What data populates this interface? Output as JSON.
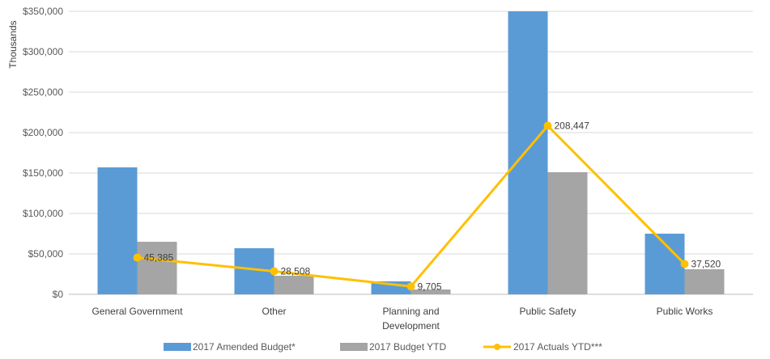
{
  "chart_data": {
    "type": "bar",
    "ylabel": "Thousands",
    "ylim": [
      0,
      350000
    ],
    "yticks": [
      "$0",
      "$50,000",
      "$100,000",
      "$150,000",
      "$200,000",
      "$250,000",
      "$300,000",
      "$350,000"
    ],
    "ytick_values": [
      0,
      50000,
      100000,
      150000,
      200000,
      250000,
      300000,
      350000
    ],
    "categories": [
      "General Government",
      "Other",
      "Planning and Development",
      "Public Safety",
      "Public Works"
    ],
    "category_lines": [
      [
        "General Government"
      ],
      [
        "Other"
      ],
      [
        "Planning and",
        "Development"
      ],
      [
        "Public Safety"
      ],
      [
        "Public Works"
      ]
    ],
    "grid": true,
    "legend_position": "bottom",
    "series": [
      {
        "name": "2017 Amended Budget*",
        "kind": "bar",
        "color": "#5B9BD5",
        "values": [
          157000,
          57000,
          16000,
          350000,
          75000
        ]
      },
      {
        "name": "2017 Budget YTD",
        "kind": "bar",
        "color": "#A5A5A5",
        "values": [
          65000,
          23000,
          6000,
          151000,
          31000
        ]
      },
      {
        "name": "2017 Actuals YTD***",
        "kind": "line",
        "color": "#FFC000",
        "values": [
          45385,
          28508,
          9705,
          208447,
          37520
        ],
        "labels": [
          "45,385",
          "28,508",
          "9,705",
          "208,447",
          "37,520"
        ]
      }
    ]
  }
}
